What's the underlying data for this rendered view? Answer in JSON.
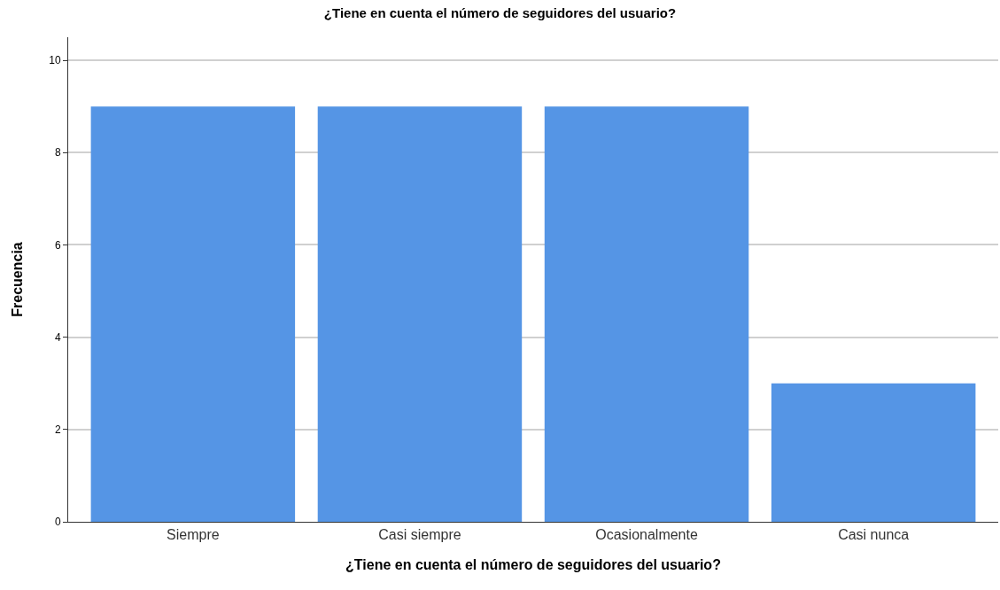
{
  "chart_data": {
    "type": "bar",
    "title": "¿Tiene en cuenta el número de seguidores del usuario?",
    "xlabel": "¿Tiene en cuenta el número de seguidores del usuario?",
    "ylabel": "Frecuencia",
    "categories": [
      "Siempre",
      "Casi siempre",
      "Ocasionalmente",
      "Casi nunca"
    ],
    "values": [
      9,
      9,
      9,
      3
    ],
    "color": "#5595e5",
    "ylim": [
      0,
      10.5
    ],
    "yticks": [
      0,
      2,
      4,
      6,
      8,
      10
    ],
    "grid": "y"
  }
}
